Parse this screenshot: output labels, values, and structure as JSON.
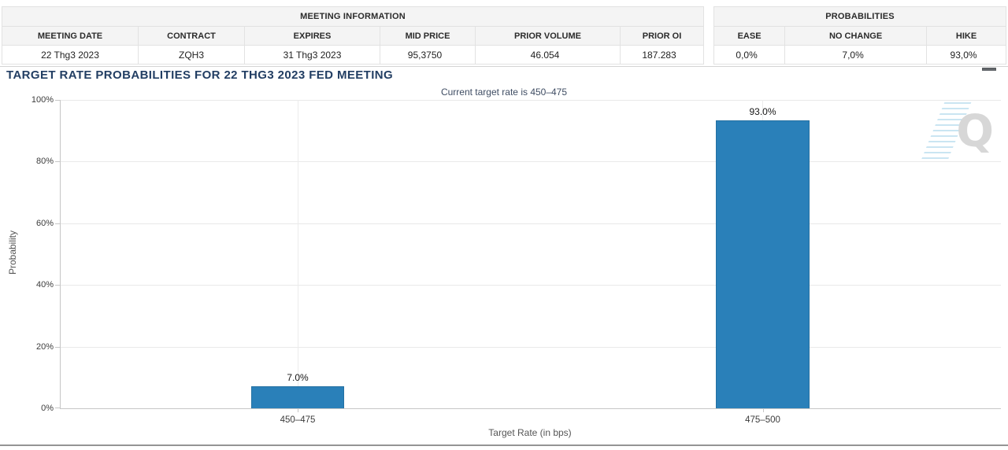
{
  "header_tables": {
    "meeting_information": {
      "title": "MEETING INFORMATION",
      "columns": [
        "MEETING DATE",
        "CONTRACT",
        "EXPIRES",
        "MID PRICE",
        "PRIOR VOLUME",
        "PRIOR OI"
      ],
      "row": [
        "22 Thg3 2023",
        "ZQH3",
        "31 Thg3 2023",
        "95,3750",
        "46.054",
        "187.283"
      ]
    },
    "probabilities": {
      "title": "PROBABILITIES",
      "columns": [
        "EASE",
        "NO CHANGE",
        "HIKE"
      ],
      "row": [
        "0,0%",
        "7,0%",
        "93,0%"
      ]
    }
  },
  "chart": {
    "title": "TARGET RATE PROBABILITIES FOR 22 THG3 2023 FED MEETING",
    "menu_icon": "hamburger-icon",
    "watermark_letter": "Q"
  },
  "chart_data": {
    "type": "bar",
    "title": "TARGET RATE PROBABILITIES FOR 22 THG3 2023 FED MEETING",
    "subtitle": "Current target rate is 450–475",
    "categories": [
      "450–475",
      "475–500"
    ],
    "values": [
      7.0,
      93.0
    ],
    "value_labels": [
      "7.0%",
      "93.0%"
    ],
    "xlabel": "Target Rate (in bps)",
    "ylabel": "Probability",
    "ylim": [
      0,
      100
    ],
    "ytick_labels_top_down": [
      "100%",
      "80%",
      "60%",
      "40%",
      "20%",
      "0%"
    ],
    "grid": true,
    "legend": false,
    "bar_color": "#2A80B9"
  },
  "colors": {
    "bar_blue": "#2A80B9",
    "title_navy": "#223E63",
    "table_header_bg": "#F4F4F4"
  }
}
